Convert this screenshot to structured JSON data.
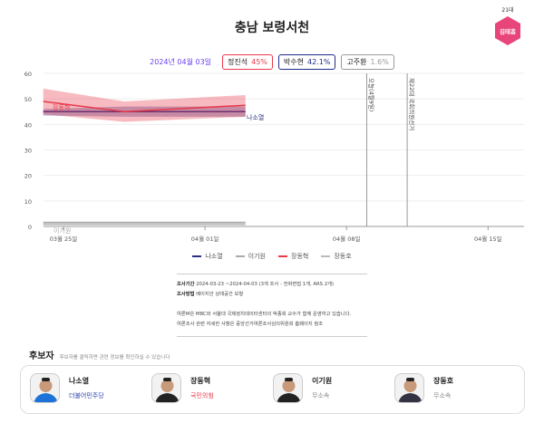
{
  "header": {
    "title": "충남 보령서천",
    "badge_term": "21대",
    "badge_name": "김태흠"
  },
  "summary": {
    "date": "2024년 04월 03일",
    "chips": [
      {
        "name": "정진석",
        "pct": "45%",
        "color": "#e8394a"
      },
      {
        "name": "박수현",
        "pct": "42.1%",
        "color": "#1f2b8a"
      },
      {
        "name": "고주환",
        "pct": "1.6%",
        "color": "#999999"
      }
    ]
  },
  "chart_data": {
    "type": "line",
    "yticks": [
      "0",
      "10",
      "20",
      "30",
      "40",
      "50",
      "60"
    ],
    "ylim": [
      0,
      60
    ],
    "xticks": [
      "03월 25일",
      "04월 01일",
      "04월 08일",
      "04월 15일"
    ],
    "xtick_dates": [
      "2024-03-25",
      "2024-04-01",
      "2024-04-08",
      "2024-04-15"
    ],
    "x": [
      "2024-03-24",
      "2024-03-28",
      "2024-04-03"
    ],
    "series": [
      {
        "name": "나소열",
        "color": "#2a2f85",
        "values": [
          45,
          45,
          45
        ],
        "lower": [
          43.5,
          43,
          43
        ],
        "upper": [
          46,
          47,
          47
        ],
        "label": "나소열"
      },
      {
        "name": "이기원",
        "color": "#aaaaaa",
        "values": [
          1.5,
          1.5,
          1.5
        ],
        "lower": [
          1,
          1,
          1
        ],
        "upper": [
          2,
          2,
          2
        ],
        "label": "이기원"
      },
      {
        "name": "장동혁",
        "color": "#e8394a",
        "values": [
          49,
          45,
          47.5
        ],
        "lower": [
          44,
          41,
          43
        ],
        "upper": [
          54,
          49,
          51.5
        ],
        "label": "장동혁"
      },
      {
        "name": "장동호",
        "color": "#bbbbbb",
        "values": [
          0.8,
          0.8,
          0.8
        ],
        "lower": [
          0.5,
          0.5,
          0.5
        ],
        "upper": [
          1,
          1,
          1
        ]
      }
    ],
    "events": [
      {
        "date": "2024-04-09",
        "label": "오늘(4월9일)"
      },
      {
        "date": "2024-04-11",
        "label": "제22대 국회의원선거"
      }
    ]
  },
  "info": {
    "period_label": "조사기간",
    "period": "2024-03-23 ~2024-04-03 (3개 조사 - 전화면접 1개, ARS 2개)",
    "method_label": "조사방법",
    "method": "베이지안 상태공간 모형",
    "note1": "여론M은 MBC와 서울대 국제정치데이터센터의 박종희 교수가 함께 운영하고 있습니다.",
    "note2": "여론조사 관련 자세한 사항은 중앙선거여론조사심의위원회 홈페이지 참조"
  },
  "candidates": {
    "title": "후보자",
    "hint": "후보자를 클릭하면 관련 정보를 확인하실 수 있습니다",
    "items": [
      {
        "name": "나소열",
        "party": "더불어민주당",
        "color": "#2a3fb0",
        "shirt": "#1e73d8"
      },
      {
        "name": "장동혁",
        "party": "국민의힘",
        "color": "#e8394a",
        "shirt": "#222222"
      },
      {
        "name": "이기원",
        "party": "무소속",
        "color": "#888888",
        "shirt": "#222222"
      },
      {
        "name": "장동호",
        "party": "무소속",
        "color": "#888888",
        "shirt": "#333344"
      }
    ]
  }
}
